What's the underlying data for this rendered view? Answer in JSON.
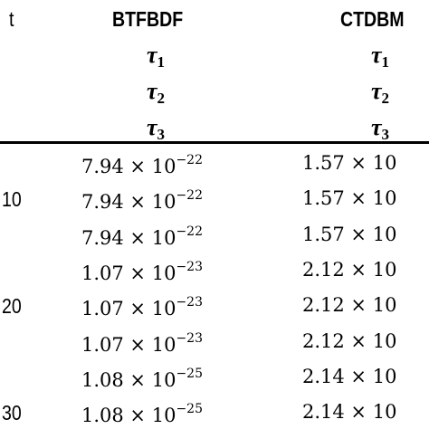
{
  "header": {
    "t": "t",
    "columns": [
      "BTFBDF",
      "CTDBM"
    ]
  },
  "subheaders": [
    {
      "symbol": "τ",
      "sub": "1"
    },
    {
      "symbol": "τ",
      "sub": "2"
    },
    {
      "symbol": "τ",
      "sub": "3"
    }
  ],
  "groups": [
    {
      "t": "10",
      "btfbdf": [
        {
          "base": "7.94 × 10",
          "exp": "−22"
        },
        {
          "base": "7.94 × 10",
          "exp": "−22"
        },
        {
          "base": "7.94 × 10",
          "exp": "−22"
        }
      ],
      "ctdbm": [
        "1.57 × 10",
        "1.57 × 10",
        "1.57 × 10"
      ]
    },
    {
      "t": "20",
      "btfbdf": [
        {
          "base": "1.07 × 10",
          "exp": "−23"
        },
        {
          "base": "1.07 × 10",
          "exp": "−23"
        },
        {
          "base": "1.07 × 10",
          "exp": "−23"
        }
      ],
      "ctdbm": [
        "2.12 × 10",
        "2.12 × 10",
        "2.12 × 10"
      ]
    },
    {
      "t": "30",
      "btfbdf": [
        {
          "base": "1.08 × 10",
          "exp": "−25"
        },
        {
          "base": "1.08 × 10",
          "exp": "−25"
        }
      ],
      "ctdbm": [
        "2.14 × 10",
        "2.14 × 10"
      ]
    }
  ]
}
